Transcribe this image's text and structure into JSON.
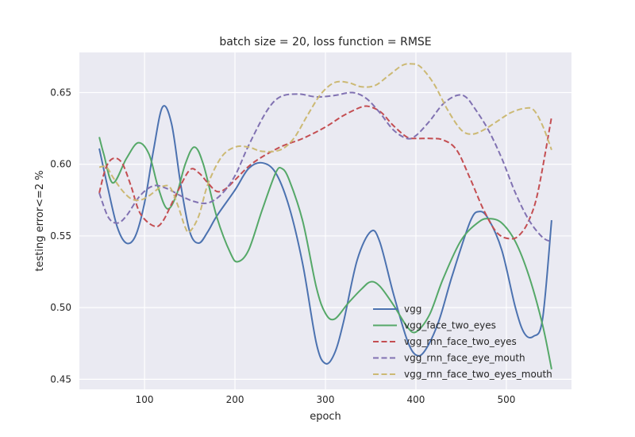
{
  "chart_data": {
    "type": "line",
    "title": "batch size = 20, loss function = RMSE",
    "xlabel": "epoch",
    "ylabel": "testing error<=2 %",
    "xlim": [
      28,
      572
    ],
    "ylim": [
      0.443,
      0.678
    ],
    "xticks": [
      100,
      200,
      300,
      400,
      500
    ],
    "yticks": [
      0.45,
      0.5,
      0.55,
      0.6,
      0.65
    ],
    "ytick_labels": [
      "0.45",
      "0.50",
      "0.55",
      "0.60",
      "0.65"
    ],
    "grid": true,
    "legend_position": "lower-right",
    "series": [
      {
        "name": "vgg",
        "color": "#4c72b0",
        "dash": "solid",
        "points": [
          [
            50,
            0.611
          ],
          [
            60,
            0.582
          ],
          [
            70,
            0.556
          ],
          [
            80,
            0.545
          ],
          [
            90,
            0.55
          ],
          [
            100,
            0.573
          ],
          [
            110,
            0.61
          ],
          [
            120,
            0.64
          ],
          [
            130,
            0.628
          ],
          [
            140,
            0.586
          ],
          [
            150,
            0.553
          ],
          [
            160,
            0.545
          ],
          [
            170,
            0.553
          ],
          [
            180,
            0.564
          ],
          [
            200,
            0.582
          ],
          [
            215,
            0.597
          ],
          [
            230,
            0.601
          ],
          [
            245,
            0.594
          ],
          [
            260,
            0.57
          ],
          [
            275,
            0.53
          ],
          [
            290,
            0.475
          ],
          [
            300,
            0.461
          ],
          [
            310,
            0.468
          ],
          [
            320,
            0.49
          ],
          [
            335,
            0.533
          ],
          [
            350,
            0.553
          ],
          [
            360,
            0.546
          ],
          [
            375,
            0.51
          ],
          [
            390,
            0.478
          ],
          [
            400,
            0.467
          ],
          [
            410,
            0.47
          ],
          [
            425,
            0.49
          ],
          [
            440,
            0.522
          ],
          [
            460,
            0.56
          ],
          [
            470,
            0.567
          ],
          [
            480,
            0.562
          ],
          [
            495,
            0.54
          ],
          [
            510,
            0.5
          ],
          [
            520,
            0.482
          ],
          [
            530,
            0.48
          ],
          [
            540,
            0.492
          ],
          [
            550,
            0.561
          ]
        ]
      },
      {
        "name": "vgg_face_two_eyes",
        "color": "#55a868",
        "dash": "solid",
        "points": [
          [
            50,
            0.619
          ],
          [
            55,
            0.607
          ],
          [
            65,
            0.587
          ],
          [
            80,
            0.604
          ],
          [
            93,
            0.615
          ],
          [
            105,
            0.607
          ],
          [
            115,
            0.584
          ],
          [
            125,
            0.569
          ],
          [
            135,
            0.578
          ],
          [
            145,
            0.6
          ],
          [
            155,
            0.612
          ],
          [
            165,
            0.6
          ],
          [
            180,
            0.563
          ],
          [
            195,
            0.538
          ],
          [
            203,
            0.532
          ],
          [
            215,
            0.54
          ],
          [
            230,
            0.568
          ],
          [
            245,
            0.594
          ],
          [
            252,
            0.597
          ],
          [
            260,
            0.589
          ],
          [
            275,
            0.56
          ],
          [
            290,
            0.514
          ],
          [
            300,
            0.496
          ],
          [
            310,
            0.492
          ],
          [
            325,
            0.503
          ],
          [
            340,
            0.513
          ],
          [
            350,
            0.518
          ],
          [
            360,
            0.515
          ],
          [
            375,
            0.502
          ],
          [
            390,
            0.487
          ],
          [
            400,
            0.483
          ],
          [
            415,
            0.495
          ],
          [
            430,
            0.52
          ],
          [
            450,
            0.547
          ],
          [
            470,
            0.56
          ],
          [
            482,
            0.562
          ],
          [
            495,
            0.559
          ],
          [
            510,
            0.546
          ],
          [
            525,
            0.522
          ],
          [
            540,
            0.488
          ],
          [
            550,
            0.457
          ]
        ]
      },
      {
        "name": "vgg_rnn_face_two_eyes",
        "color": "#c44e52",
        "dash": "dashed",
        "points": [
          [
            50,
            0.58
          ],
          [
            57,
            0.597
          ],
          [
            65,
            0.604
          ],
          [
            75,
            0.601
          ],
          [
            85,
            0.585
          ],
          [
            95,
            0.566
          ],
          [
            110,
            0.557
          ],
          [
            120,
            0.56
          ],
          [
            135,
            0.579
          ],
          [
            150,
            0.596
          ],
          [
            160,
            0.594
          ],
          [
            170,
            0.587
          ],
          [
            180,
            0.581
          ],
          [
            190,
            0.583
          ],
          [
            200,
            0.589
          ],
          [
            220,
            0.601
          ],
          [
            250,
            0.612
          ],
          [
            275,
            0.618
          ],
          [
            300,
            0.626
          ],
          [
            320,
            0.634
          ],
          [
            340,
            0.64
          ],
          [
            350,
            0.64
          ],
          [
            362,
            0.636
          ],
          [
            375,
            0.627
          ],
          [
            390,
            0.619
          ],
          [
            400,
            0.618
          ],
          [
            415,
            0.618
          ],
          [
            430,
            0.617
          ],
          [
            445,
            0.61
          ],
          [
            460,
            0.59
          ],
          [
            475,
            0.568
          ],
          [
            490,
            0.552
          ],
          [
            505,
            0.548
          ],
          [
            515,
            0.551
          ],
          [
            525,
            0.561
          ],
          [
            535,
            0.581
          ],
          [
            550,
            0.633
          ]
        ]
      },
      {
        "name": "vgg_rnn_face_eye_mouth",
        "color": "#8172b2",
        "dash": "dashed",
        "points": [
          [
            50,
            0.58
          ],
          [
            60,
            0.563
          ],
          [
            70,
            0.559
          ],
          [
            80,
            0.564
          ],
          [
            95,
            0.578
          ],
          [
            110,
            0.585
          ],
          [
            125,
            0.583
          ],
          [
            140,
            0.578
          ],
          [
            155,
            0.574
          ],
          [
            170,
            0.573
          ],
          [
            185,
            0.579
          ],
          [
            200,
            0.592
          ],
          [
            215,
            0.613
          ],
          [
            235,
            0.637
          ],
          [
            250,
            0.647
          ],
          [
            270,
            0.649
          ],
          [
            290,
            0.647
          ],
          [
            310,
            0.648
          ],
          [
            330,
            0.65
          ],
          [
            345,
            0.646
          ],
          [
            360,
            0.636
          ],
          [
            375,
            0.624
          ],
          [
            390,
            0.618
          ],
          [
            400,
            0.62
          ],
          [
            415,
            0.63
          ],
          [
            430,
            0.642
          ],
          [
            445,
            0.648
          ],
          [
            455,
            0.647
          ],
          [
            465,
            0.639
          ],
          [
            480,
            0.624
          ],
          [
            495,
            0.604
          ],
          [
            510,
            0.58
          ],
          [
            525,
            0.561
          ],
          [
            540,
            0.549
          ],
          [
            550,
            0.546
          ]
        ]
      },
      {
        "name": "vgg_rnn_face_two_eyes_mouth",
        "color": "#ccb974",
        "dash": "dashed",
        "points": [
          [
            50,
            0.598
          ],
          [
            58,
            0.598
          ],
          [
            65,
            0.591
          ],
          [
            75,
            0.582
          ],
          [
            85,
            0.576
          ],
          [
            95,
            0.575
          ],
          [
            105,
            0.578
          ],
          [
            118,
            0.584
          ],
          [
            128,
            0.584
          ],
          [
            137,
            0.571
          ],
          [
            145,
            0.556
          ],
          [
            150,
            0.553
          ],
          [
            160,
            0.564
          ],
          [
            170,
            0.586
          ],
          [
            185,
            0.605
          ],
          [
            200,
            0.612
          ],
          [
            215,
            0.612
          ],
          [
            230,
            0.609
          ],
          [
            250,
            0.61
          ],
          [
            265,
            0.618
          ],
          [
            280,
            0.634
          ],
          [
            295,
            0.649
          ],
          [
            310,
            0.657
          ],
          [
            325,
            0.657
          ],
          [
            340,
            0.654
          ],
          [
            355,
            0.655
          ],
          [
            370,
            0.662
          ],
          [
            385,
            0.669
          ],
          [
            395,
            0.67
          ],
          [
            405,
            0.668
          ],
          [
            420,
            0.656
          ],
          [
            435,
            0.638
          ],
          [
            450,
            0.624
          ],
          [
            462,
            0.621
          ],
          [
            475,
            0.624
          ],
          [
            490,
            0.63
          ],
          [
            505,
            0.636
          ],
          [
            520,
            0.639
          ],
          [
            530,
            0.638
          ],
          [
            540,
            0.627
          ],
          [
            550,
            0.61
          ]
        ]
      }
    ]
  }
}
